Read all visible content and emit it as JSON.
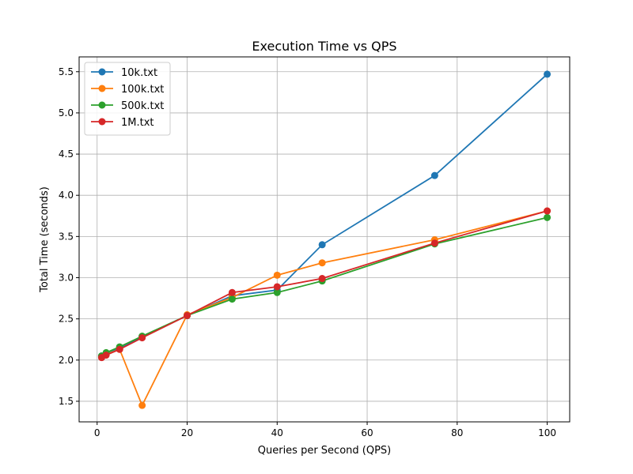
{
  "chart_data": {
    "type": "line",
    "title": "Execution Time vs QPS",
    "xlabel": "Queries per Second (QPS)",
    "ylabel": "Total Time (seconds)",
    "xlim": [
      -4,
      105
    ],
    "ylim": [
      1.25,
      5.68
    ],
    "xticks": [
      0,
      20,
      40,
      60,
      80,
      100
    ],
    "yticks": [
      1.5,
      2.0,
      2.5,
      3.0,
      3.5,
      4.0,
      4.5,
      5.0,
      5.5
    ],
    "grid": true,
    "legend_position": "top-left",
    "series": [
      {
        "name": "10k.txt",
        "color": "#1f77b4",
        "x": [
          1,
          2,
          5,
          10,
          20,
          30,
          40,
          50,
          75,
          100
        ],
        "y": [
          2.05,
          2.08,
          2.14,
          2.28,
          2.54,
          2.78,
          2.85,
          3.4,
          4.24,
          5.47
        ]
      },
      {
        "name": "100k.txt",
        "color": "#ff7f0e",
        "x": [
          1,
          2,
          5,
          10,
          20,
          30,
          40,
          50,
          75,
          100
        ],
        "y": [
          2.04,
          2.07,
          2.13,
          1.45,
          2.55,
          2.76,
          3.03,
          3.18,
          3.46,
          3.81
        ]
      },
      {
        "name": "500k.txt",
        "color": "#2ca02c",
        "x": [
          1,
          2,
          5,
          10,
          20,
          30,
          40,
          50,
          75,
          100
        ],
        "y": [
          2.05,
          2.09,
          2.16,
          2.29,
          2.54,
          2.74,
          2.82,
          2.96,
          3.41,
          3.73
        ]
      },
      {
        "name": "1M.txt",
        "color": "#d62728",
        "x": [
          1,
          2,
          5,
          10,
          20,
          30,
          40,
          50,
          75,
          100
        ],
        "y": [
          2.03,
          2.06,
          2.13,
          2.27,
          2.54,
          2.82,
          2.89,
          2.99,
          3.42,
          3.81
        ]
      }
    ]
  }
}
